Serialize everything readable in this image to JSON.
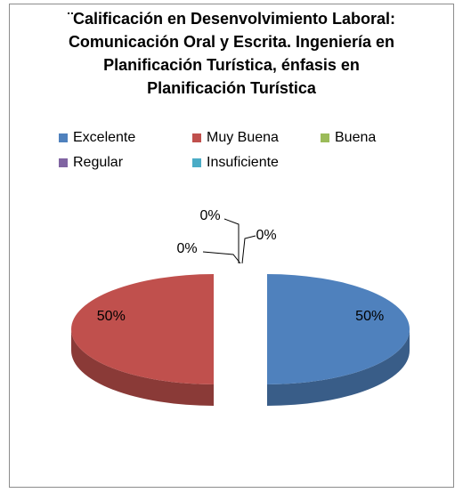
{
  "chart_data": {
    "type": "pie",
    "title": "¨Calificación en Desenvolvimiento Laboral: Comunicación Oral y Escrita. Ingeniería en Planificación Turística, énfasis en Planificación Turística",
    "categories": [
      "Excelente",
      "Muy Buena",
      "Buena",
      "Regular",
      "Insuficiente"
    ],
    "values": [
      50,
      50,
      0,
      0,
      0
    ],
    "value_labels": [
      "50%",
      "50%",
      "0%",
      "0%",
      "0%"
    ],
    "colors": [
      "#4f81bd",
      "#c0504d",
      "#9bbb59",
      "#8064a2",
      "#4bacc6"
    ],
    "legend": "top"
  }
}
